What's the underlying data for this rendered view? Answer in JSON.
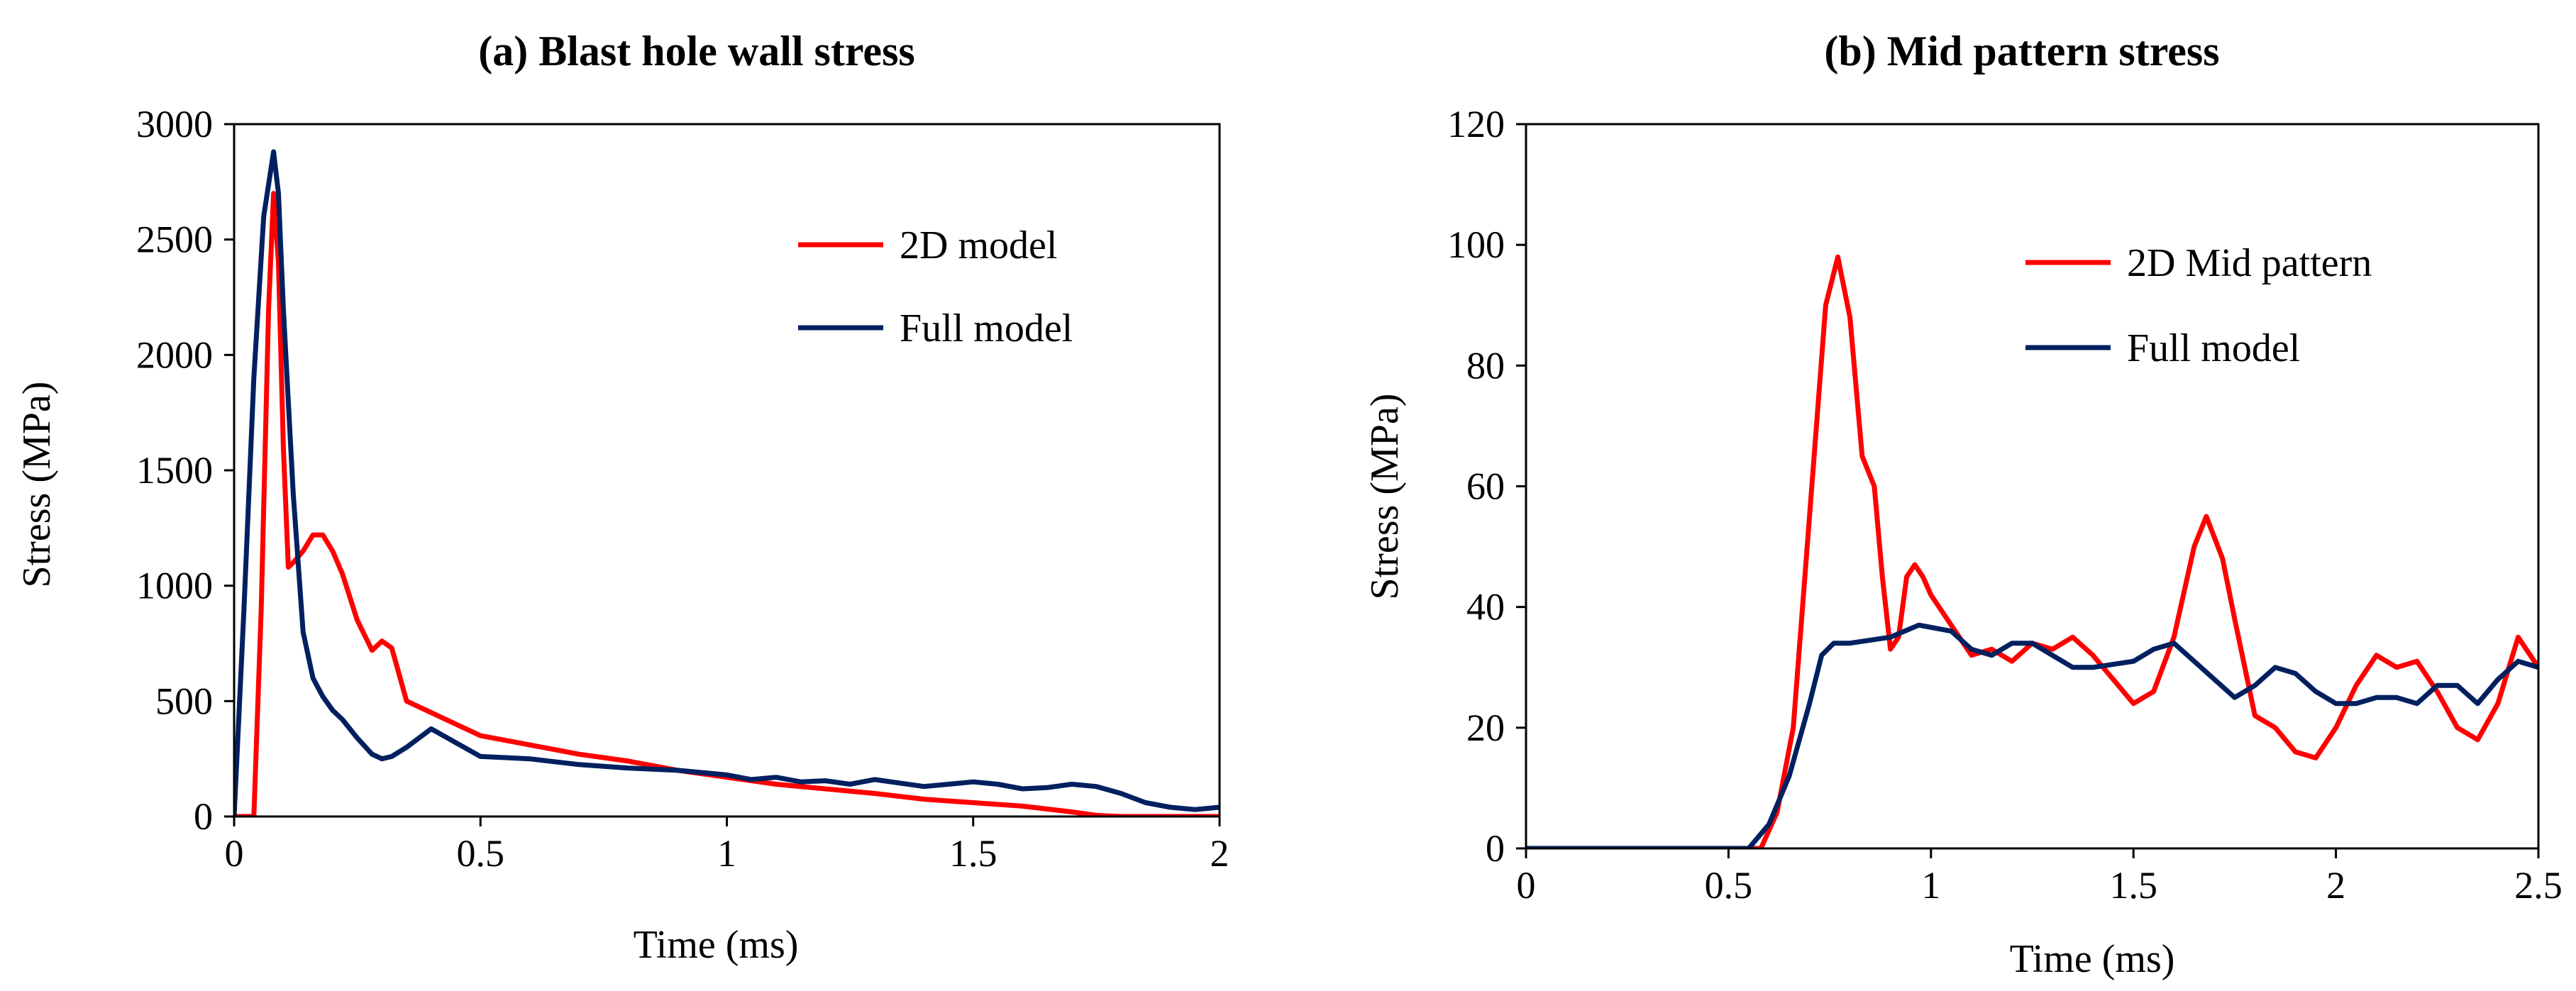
{
  "chart_data": [
    {
      "type": "line",
      "title": "(a)  Blast hole wall stress",
      "xlabel": "Time (ms)",
      "ylabel": "Stress (MPa)",
      "xlim": [
        0,
        2
      ],
      "ylim": [
        0,
        3000
      ],
      "xticks": [
        0,
        0.5,
        1,
        1.5,
        2
      ],
      "xtick_labels": [
        "0",
        "0.5",
        "1",
        "1.5",
        "2"
      ],
      "yticks": [
        0,
        500,
        1000,
        1500,
        2000,
        2500,
        3000
      ],
      "ytick_labels": [
        "0",
        "500",
        "1000",
        "1500",
        "2000",
        "2500",
        "3000"
      ],
      "grid": false,
      "legend": "top-right",
      "series": [
        {
          "name": "2D model",
          "color": "#ff0000",
          "x": [
            0,
            0.02,
            0.04,
            0.055,
            0.07,
            0.08,
            0.09,
            0.1,
            0.11,
            0.12,
            0.14,
            0.16,
            0.18,
            0.2,
            0.22,
            0.25,
            0.28,
            0.3,
            0.32,
            0.35,
            0.38,
            0.42,
            0.5,
            0.6,
            0.7,
            0.8,
            0.9,
            1.0,
            1.1,
            1.2,
            1.3,
            1.4,
            1.5,
            1.6,
            1.7,
            1.75,
            1.8,
            1.9,
            2.0
          ],
          "y": [
            0,
            0,
            0,
            900,
            2200,
            2700,
            2400,
            1600,
            1080,
            1100,
            1150,
            1220,
            1220,
            1150,
            1050,
            850,
            720,
            760,
            730,
            500,
            470,
            430,
            350,
            310,
            270,
            240,
            200,
            170,
            140,
            120,
            100,
            75,
            60,
            45,
            20,
            5,
            0,
            0,
            0
          ]
        },
        {
          "name": "Full model",
          "color": "#002060",
          "x": [
            0,
            0.02,
            0.04,
            0.06,
            0.08,
            0.09,
            0.1,
            0.12,
            0.14,
            0.16,
            0.18,
            0.2,
            0.22,
            0.25,
            0.28,
            0.3,
            0.32,
            0.35,
            0.4,
            0.45,
            0.5,
            0.55,
            0.6,
            0.7,
            0.8,
            0.9,
            1.0,
            1.05,
            1.1,
            1.15,
            1.2,
            1.25,
            1.3,
            1.35,
            1.4,
            1.45,
            1.5,
            1.55,
            1.6,
            1.65,
            1.7,
            1.75,
            1.8,
            1.85,
            1.9,
            1.95,
            2.0
          ],
          "y": [
            0,
            900,
            1900,
            2600,
            2880,
            2700,
            2200,
            1400,
            800,
            600,
            520,
            460,
            420,
            340,
            270,
            250,
            260,
            300,
            380,
            320,
            260,
            255,
            250,
            225,
            210,
            200,
            180,
            160,
            170,
            150,
            155,
            140,
            160,
            145,
            130,
            140,
            150,
            140,
            120,
            125,
            140,
            130,
            100,
            60,
            40,
            30,
            40
          ]
        }
      ]
    },
    {
      "type": "line",
      "title": "(b)  Mid pattern stress",
      "xlabel": "Time (ms)",
      "ylabel": "Stress (MPa)",
      "xlim": [
        0,
        2.5
      ],
      "ylim": [
        0,
        120
      ],
      "xticks": [
        0,
        0.5,
        1,
        1.5,
        2,
        2.5
      ],
      "xtick_labels": [
        "0",
        "0.5",
        "1",
        "1.5",
        "2",
        "2.5"
      ],
      "yticks": [
        0,
        20,
        40,
        60,
        80,
        100,
        120
      ],
      "ytick_labels": [
        "0",
        "20",
        "40",
        "60",
        "80",
        "100",
        "120"
      ],
      "grid": false,
      "legend": "top-right",
      "series": [
        {
          "name": "2D Mid pattern",
          "color": "#ff0000",
          "x": [
            0,
            0.5,
            0.58,
            0.62,
            0.66,
            0.7,
            0.74,
            0.77,
            0.8,
            0.83,
            0.86,
            0.88,
            0.9,
            0.92,
            0.94,
            0.96,
            0.98,
            1.0,
            1.05,
            1.1,
            1.15,
            1.2,
            1.25,
            1.3,
            1.35,
            1.4,
            1.45,
            1.5,
            1.55,
            1.6,
            1.65,
            1.68,
            1.72,
            1.75,
            1.8,
            1.85,
            1.9,
            1.95,
            2.0,
            2.05,
            2.1,
            2.15,
            2.2,
            2.25,
            2.3,
            2.35,
            2.4,
            2.45,
            2.5
          ],
          "y": [
            0,
            0,
            0,
            6,
            20,
            55,
            90,
            98,
            88,
            65,
            60,
            45,
            33,
            35,
            45,
            47,
            45,
            42,
            37,
            32,
            33,
            31,
            34,
            33,
            35,
            32,
            28,
            24,
            26,
            35,
            50,
            55,
            48,
            38,
            22,
            20,
            16,
            15,
            20,
            27,
            32,
            30,
            31,
            26,
            20,
            18,
            24,
            35,
            30
          ]
        },
        {
          "name": "Full model",
          "color": "#002060",
          "x": [
            0,
            0.5,
            0.55,
            0.6,
            0.65,
            0.7,
            0.73,
            0.76,
            0.8,
            0.9,
            0.97,
            1.05,
            1.1,
            1.15,
            1.2,
            1.25,
            1.3,
            1.35,
            1.4,
            1.5,
            1.55,
            1.6,
            1.65,
            1.7,
            1.75,
            1.8,
            1.85,
            1.9,
            1.95,
            2.0,
            2.05,
            2.1,
            2.15,
            2.2,
            2.25,
            2.3,
            2.35,
            2.4,
            2.45,
            2.5
          ],
          "y": [
            0,
            0,
            0,
            4,
            12,
            24,
            32,
            34,
            34,
            35,
            37,
            36,
            33,
            32,
            34,
            34,
            32,
            30,
            30,
            31,
            33,
            34,
            31,
            28,
            25,
            27,
            30,
            29,
            26,
            24,
            24,
            25,
            25,
            24,
            27,
            27,
            24,
            28,
            31,
            30
          ]
        }
      ]
    }
  ]
}
